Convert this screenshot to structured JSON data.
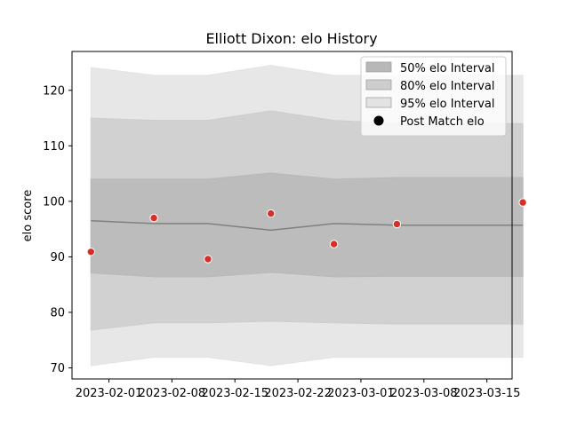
{
  "chart_data": {
    "type": "line",
    "title": "Elliott Dixon: elo History",
    "xlabel": "",
    "ylabel": "elo score",
    "x_ticks": [
      "2023-02-01",
      "2023-02-08",
      "2023-02-15",
      "2023-02-22",
      "2023-03-01",
      "2023-03-08",
      "2023-03-15"
    ],
    "y_ticks": [
      "70",
      "80",
      "90",
      "100",
      "110",
      "120"
    ],
    "ylim": [
      68,
      127
    ],
    "xlim_days": [
      -4.1,
      44.8
    ],
    "x_day_labels_offset": 0,
    "dates_days": [
      -2,
      5,
      11,
      18,
      25,
      32,
      46
    ],
    "date_labels": [
      "2023-01-30",
      "2023-02-06",
      "2023-02-12",
      "2023-02-19",
      "2023-02-26",
      "2023-03-05",
      "2023-03-19"
    ],
    "series": [
      {
        "name": "Mean elo",
        "values": [
          96.5,
          96.0,
          96.0,
          94.8,
          96.0,
          95.7,
          95.7
        ],
        "color": "#808080"
      },
      {
        "name": "Post Match elo",
        "values": [
          90.9,
          97.0,
          89.6,
          97.8,
          92.3,
          95.9,
          99.8
        ],
        "color": "#d62f28"
      }
    ],
    "bands": [
      {
        "name": "95% elo Interval",
        "lower": [
          70.4,
          71.9,
          71.9,
          70.4,
          71.9,
          71.9,
          71.9
        ],
        "upper": [
          124.1,
          122.7,
          122.7,
          124.5,
          122.7,
          122.7,
          122.7
        ],
        "color": "#e3e3e3"
      },
      {
        "name": "80% elo Interval",
        "lower": [
          76.8,
          78.1,
          78.1,
          78.4,
          78.1,
          77.9,
          77.9
        ],
        "upper": [
          115.0,
          114.6,
          114.6,
          116.3,
          114.6,
          114.0,
          114.0
        ],
        "color": "#cdcdcd"
      },
      {
        "name": "50% elo Interval",
        "lower": [
          87.1,
          86.4,
          86.4,
          87.2,
          86.4,
          86.5,
          86.5
        ],
        "upper": [
          104.0,
          104.0,
          104.0,
          105.1,
          104.0,
          104.3,
          104.3
        ],
        "color": "#b8b8b8"
      }
    ],
    "legend": {
      "position": "top-right",
      "entries": [
        "50% elo Interval",
        "80% elo Interval",
        "95% elo Interval",
        "Post Match elo"
      ]
    }
  }
}
